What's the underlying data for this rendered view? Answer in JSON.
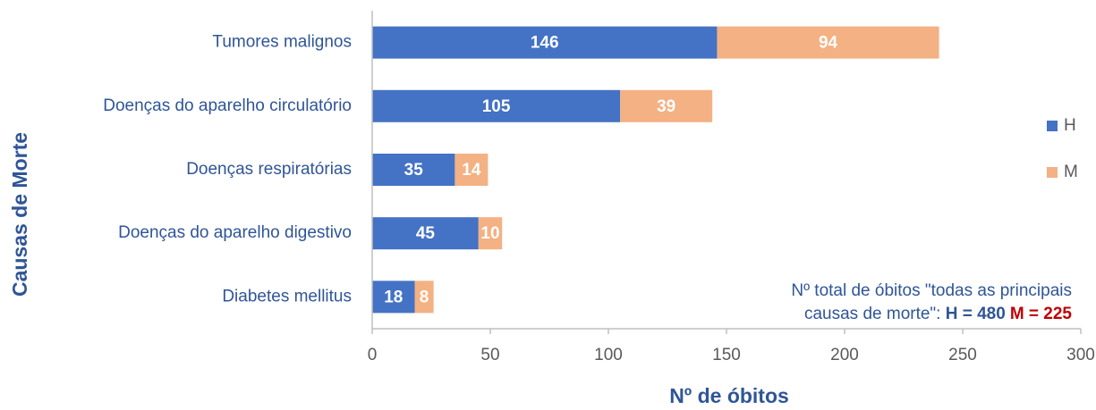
{
  "chart_data": {
    "type": "stacked_barh",
    "categories": [
      "Tumores malignos",
      "Doenças do aparelho circulatório",
      "Doenças respiratórias",
      "Doenças do aparelho digestivo",
      "Diabetes mellitus"
    ],
    "series": [
      {
        "name": "H",
        "color": "#4472c4",
        "values": [
          146,
          105,
          35,
          45,
          18
        ]
      },
      {
        "name": "M",
        "color": "#f4b183",
        "values": [
          94,
          39,
          14,
          10,
          8
        ]
      }
    ],
    "xlim": [
      0,
      300
    ],
    "xticks": [
      0,
      50,
      100,
      150,
      200,
      250,
      300
    ],
    "xlabel": "Nº de óbitos",
    "ylabel": "Causas de Morte",
    "legend": "right",
    "annotation": {
      "line1": "Nº total de óbitos \"todas as principais",
      "line2": "causas de morte\": ",
      "h_total": "H = 480",
      "m_total": "M = 225"
    }
  }
}
